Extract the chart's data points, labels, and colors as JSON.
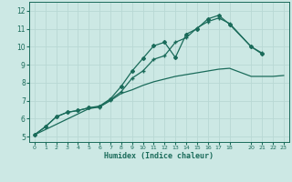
{
  "xlabel": "Humidex (Indice chaleur)",
  "xlim": [
    -0.5,
    23.5
  ],
  "ylim": [
    4.7,
    12.5
  ],
  "xticks": [
    0,
    1,
    2,
    3,
    4,
    5,
    6,
    7,
    8,
    9,
    10,
    11,
    12,
    13,
    14,
    15,
    16,
    17,
    18,
    20,
    21,
    22,
    23
  ],
  "yticks": [
    5,
    6,
    7,
    8,
    9,
    10,
    11,
    12
  ],
  "bg_color": "#cce8e4",
  "grid_color": "#b8d8d4",
  "line_color": "#1a6b5a",
  "line1_x": [
    0,
    1,
    2,
    3,
    4,
    5,
    6,
    7,
    8,
    9,
    10,
    11,
    12,
    13,
    14,
    15,
    16,
    17,
    18,
    20,
    21,
    22,
    23
  ],
  "line1_y": [
    5.1,
    5.55,
    6.1,
    6.35,
    6.45,
    6.6,
    6.7,
    7.1,
    7.8,
    8.65,
    9.35,
    10.05,
    10.25,
    9.4,
    10.7,
    11.0,
    11.55,
    11.75,
    11.25,
    10.0,
    9.6,
    null,
    null
  ],
  "line2_x": [
    0,
    1,
    2,
    3,
    4,
    5,
    6,
    7,
    8,
    9,
    10,
    11,
    12,
    13,
    14,
    15,
    16,
    17,
    18,
    20,
    21,
    22,
    23
  ],
  "line2_y": [
    5.1,
    5.55,
    6.1,
    6.35,
    6.45,
    6.6,
    6.65,
    7.05,
    7.5,
    8.25,
    8.65,
    9.3,
    9.5,
    10.25,
    10.5,
    11.05,
    11.4,
    11.6,
    11.3,
    10.0,
    9.65,
    null,
    null
  ],
  "line3_x": [
    0,
    5,
    6,
    7,
    8,
    9,
    10,
    11,
    12,
    13,
    14,
    15,
    16,
    17,
    18,
    20,
    21,
    22,
    23
  ],
  "line3_y": [
    5.1,
    6.55,
    6.65,
    7.0,
    7.4,
    7.6,
    7.85,
    8.05,
    8.2,
    8.35,
    8.45,
    8.55,
    8.65,
    8.75,
    8.8,
    8.35,
    8.35,
    8.35,
    8.4
  ]
}
